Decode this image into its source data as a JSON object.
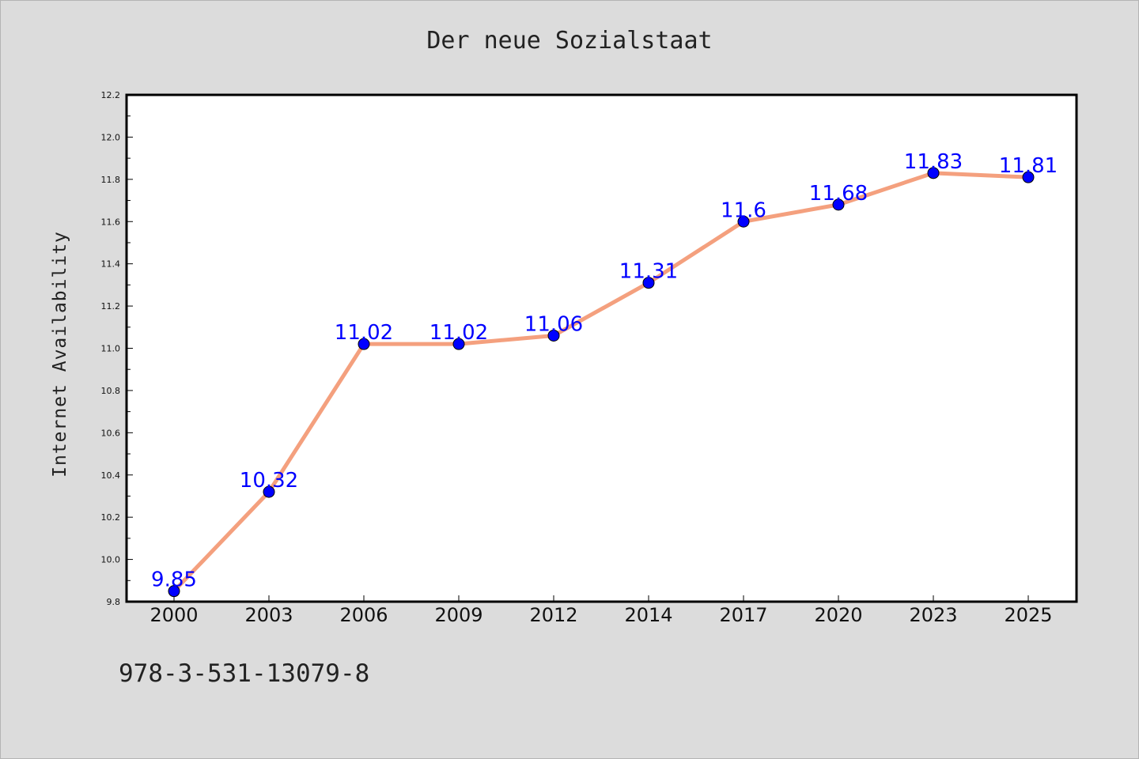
{
  "chart_data": {
    "type": "line",
    "title": "Der neue Sozialstaat",
    "xlabel": "",
    "ylabel": "Internet Availability",
    "categories": [
      "2000",
      "2003",
      "2006",
      "2009",
      "2012",
      "2014",
      "2017",
      "2020",
      "2023",
      "2025"
    ],
    "series": [
      {
        "values": [
          9.85,
          10.32,
          11.02,
          11.02,
          11.06,
          11.31,
          11.6,
          11.68,
          11.83,
          11.81
        ],
        "labels": [
          "9.85",
          "10.32",
          "11.02",
          "11.02",
          "11.06",
          "11.31",
          "11.6",
          "11.68",
          "11.83",
          "11.81"
        ],
        "line_color": "#f4a07e",
        "marker_color": "#0000ff"
      }
    ],
    "ylim": [
      9.8,
      12.2
    ],
    "yticks": [
      "9.8",
      "10.0",
      "10.2",
      "10.4",
      "10.6",
      "10.8",
      "11.0",
      "11.2",
      "11.4",
      "11.6",
      "11.8",
      "12.0",
      "12.2"
    ],
    "grid": false,
    "legend": "none",
    "background": "#dcdcdc",
    "plot_background": "#ffffff"
  },
  "footer": {
    "isbn": "978-3-531-13079-8"
  }
}
